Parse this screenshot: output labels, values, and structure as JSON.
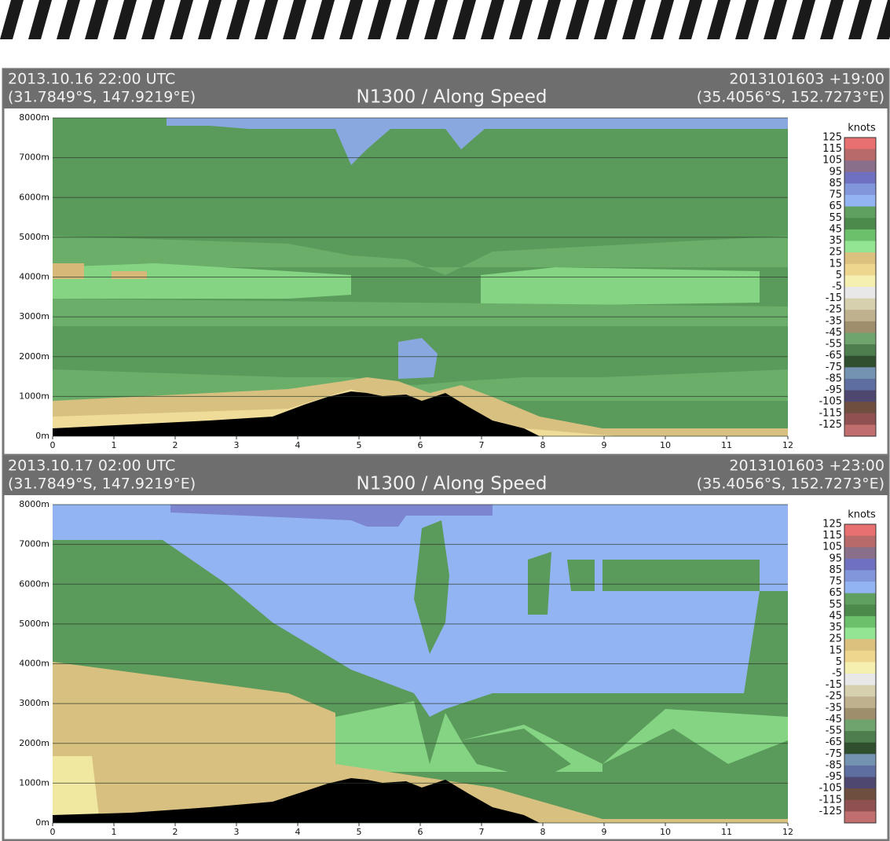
{
  "panels": [
    {
      "header": {
        "time": "2013.10.16 22:00 UTC",
        "left_coords": "(31.7849°S, 147.9219°E)",
        "title": "N1300 / Along Speed",
        "run": "2013101603 +19:00",
        "right_coords": "(35.4056°S, 152.7273°E)"
      },
      "ylim": [
        0,
        8000
      ],
      "yticks": [
        {
          "value": 0,
          "label": "0m"
        },
        {
          "value": 1000,
          "label": "1000m"
        },
        {
          "value": 2000,
          "label": "2000m"
        },
        {
          "value": 3000,
          "label": "3000m"
        },
        {
          "value": 4000,
          "label": "4000m"
        },
        {
          "value": 5000,
          "label": "5000m"
        },
        {
          "value": 6000,
          "label": "6000m"
        },
        {
          "value": 7000,
          "label": "7000m"
        },
        {
          "value": 8000,
          "label": "8000m"
        }
      ],
      "xlim": [
        0,
        12
      ],
      "xticks": [
        0,
        1,
        2,
        3,
        4,
        5,
        6,
        7,
        8,
        9,
        10,
        11,
        12
      ]
    },
    {
      "header": {
        "time": "2013.10.17 02:00 UTC",
        "left_coords": "(31.7849°S, 147.9219°E)",
        "title": "N1300 / Along Speed",
        "run": "2013101603 +23:00",
        "right_coords": "(35.4056°S, 152.7273°E)"
      },
      "ylim": [
        0,
        8000
      ],
      "yticks": [
        {
          "value": 0,
          "label": "0m"
        },
        {
          "value": 1000,
          "label": "1000m"
        },
        {
          "value": 2000,
          "label": "2000m"
        },
        {
          "value": 3000,
          "label": "3000m"
        },
        {
          "value": 4000,
          "label": "4000m"
        },
        {
          "value": 5000,
          "label": "5000m"
        },
        {
          "value": 6000,
          "label": "6000m"
        },
        {
          "value": 7000,
          "label": "7000m"
        },
        {
          "value": 8000,
          "label": "8000m"
        }
      ],
      "xlim": [
        0,
        12
      ],
      "xticks": [
        0,
        1,
        2,
        3,
        4,
        5,
        6,
        7,
        8,
        9,
        10,
        11,
        12
      ]
    }
  ],
  "colorbar": {
    "unit": "knots",
    "ticks": [
      125,
      115,
      105,
      95,
      85,
      75,
      65,
      55,
      45,
      35,
      25,
      15,
      5,
      -5,
      -15,
      -25,
      -35,
      -45,
      -55,
      -65,
      -75,
      -85,
      -95,
      -105,
      -115,
      -125
    ],
    "colors": [
      "#e87070",
      "#b86a6a",
      "#8a6f8a",
      "#6f70c0",
      "#8296dc",
      "#93b4f2",
      "#5f9f5f",
      "#4c8a4c",
      "#6cc06c",
      "#93e493",
      "#dcc07e",
      "#eed68e",
      "#f6f0b0",
      "#e8e8e8",
      "#d6d0ae",
      "#bfb08e",
      "#9e8e6c",
      "#6fa46f",
      "#4e7e4e",
      "#2f4f2f",
      "#7492b2",
      "#5e6ea0",
      "#4e4870",
      "#6e4e3e",
      "#8e5050",
      "#c06e6e"
    ]
  }
}
